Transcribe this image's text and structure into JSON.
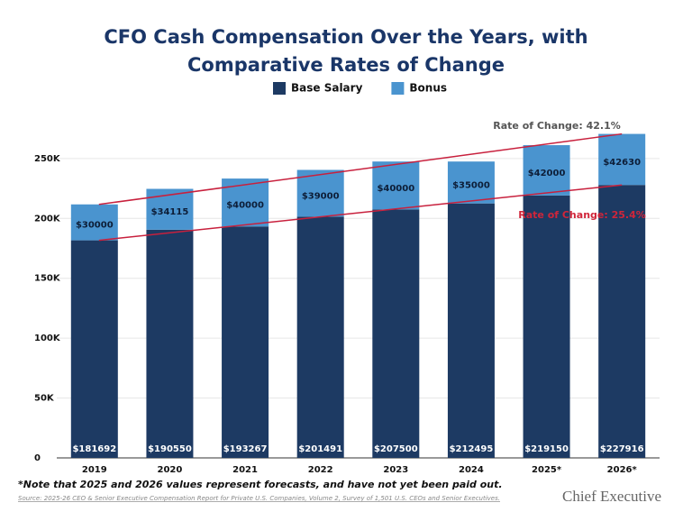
{
  "chart_data": {
    "type": "stacked_bar",
    "title": "CFO Cash Compensation Over the Years, with Comparative Rates of Change",
    "categories": [
      "2019",
      "2020",
      "2021",
      "2022",
      "2023",
      "2024",
      "2025*",
      "2026*"
    ],
    "series": [
      {
        "name": "Base Salary",
        "color": "#1d3a63",
        "values": [
          181692,
          190550,
          193267,
          201491,
          207500,
          212495,
          219150,
          227916
        ],
        "value_labels": [
          "$181692",
          "$190550",
          "$193267",
          "$201491",
          "$207500",
          "$212495",
          "$219150",
          "$227916"
        ]
      },
      {
        "name": "Bonus",
        "color": "#4a94cf",
        "values": [
          30000,
          34115,
          40000,
          39000,
          40000,
          35000,
          42000,
          42630
        ],
        "value_labels": [
          "$30000",
          "$34115",
          "$40000",
          "$39000",
          "$40000",
          "$35000",
          "$42000",
          "$42630"
        ]
      }
    ],
    "ylim": [
      0,
      280000
    ],
    "yticks": [
      0,
      {
        "value": 50000,
        "label": "50K"
      },
      {
        "value": 100000,
        "label": "100K"
      },
      {
        "value": 150000,
        "label": "150K"
      },
      {
        "value": 200000,
        "label": "200K"
      },
      {
        "value": 250000,
        "label": "250K"
      }
    ],
    "grid": true,
    "legend": "top",
    "annotations": [
      {
        "text": "Rate of Change: 42.1%",
        "color": "#555555"
      },
      {
        "text": "Rate of Change: 25.4%",
        "color": "#d0253a"
      }
    ],
    "footnote": "*Note that 2025 and 2026 values represent forecasts, and have not yet been paid out.",
    "source": "Source: 2025-26 CEO & Senior Executive Compensation Report for Private U.S. Companies, Volume 2, Survey of 1,501 U.S. CEOs and Senior Executives.",
    "brand": "Chief Executive"
  }
}
